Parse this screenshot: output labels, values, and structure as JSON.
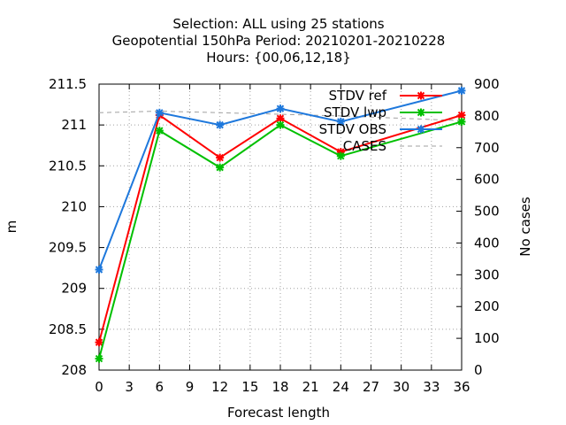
{
  "chart_data": {
    "type": "line",
    "title_lines": [
      "Selection: ALL using    25 stations",
      "Geopotential 150hPa   Period: 20210201-20210228",
      "Hours: {00,06,12,18}"
    ],
    "xlabel": "Forecast length",
    "ylabel": "m",
    "y2label": "No cases",
    "xlim": [
      0,
      36
    ],
    "ylim": [
      208,
      211.5
    ],
    "y2lim": [
      0,
      900
    ],
    "xticks": [
      "0",
      "3",
      "6",
      "9",
      "12",
      "15",
      "18",
      "21",
      "24",
      "27",
      "30",
      "33",
      "36"
    ],
    "yticks": [
      "208",
      "208.5",
      "209",
      "209.5",
      "210",
      "210.5",
      "211",
      "211.5"
    ],
    "y2ticks": [
      "0",
      "100",
      "200",
      "300",
      "400",
      "500",
      "600",
      "700",
      "800",
      "900"
    ],
    "grid": true,
    "legend_position": "top-right",
    "x": [
      0,
      6,
      12,
      18,
      24,
      36
    ],
    "series": [
      {
        "name": "STDV ref",
        "color": "#ff0000",
        "axis": "y",
        "values": [
          208.34,
          211.12,
          210.6,
          211.08,
          210.67,
          211.12
        ]
      },
      {
        "name": "STDV lwp",
        "color": "#00c000",
        "axis": "y",
        "values": [
          208.14,
          210.93,
          210.48,
          211.0,
          210.62,
          211.04
        ]
      },
      {
        "name": "STDV OBS",
        "color": "#1e78dc",
        "axis": "y",
        "values": [
          209.23,
          211.15,
          211.0,
          211.2,
          211.04,
          211.42
        ]
      },
      {
        "name": "CASES",
        "color": "#a0a0a0",
        "axis": "y2",
        "values": [
          810,
          815,
          810,
          805,
          800,
          785
        ]
      }
    ]
  }
}
